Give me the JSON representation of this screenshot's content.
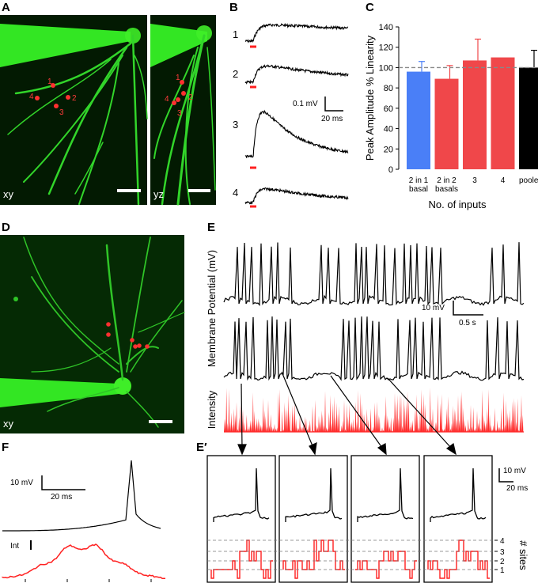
{
  "panels": {
    "A": {
      "label": "A",
      "view1": "xy",
      "view2": "yz",
      "sites_view1": [
        "1",
        "2",
        "3",
        "4"
      ],
      "sites_view2": [
        "1",
        "2",
        "3",
        "4"
      ]
    },
    "B": {
      "label": "B",
      "trace_labels": [
        "1",
        "2",
        "3",
        "4"
      ],
      "scale_mv": "0.1 mV",
      "scale_ms": "20 ms"
    },
    "C": {
      "label": "C"
    },
    "D": {
      "label": "D",
      "view": "xy"
    },
    "E": {
      "label": "E",
      "ylabel": "Membrane Potential (mV)",
      "intensity_label": "Intensity",
      "scale_mv": "10 mV",
      "scale_s": "0.5 s"
    },
    "Eprime": {
      "label": "E′",
      "scale_mv": "10 mV",
      "scale_ms": "20 ms",
      "sites_label": "# sites",
      "site_levels": [
        "4",
        "3",
        "2",
        "1"
      ]
    },
    "F": {
      "label": "F",
      "scale_mv": "10 mV",
      "scale_ms": "20 ms",
      "int_label": "Int"
    }
  },
  "chart_data": {
    "type": "bar",
    "categories": [
      "2 in 1 basal",
      "2 in 2 basals",
      "3",
      "4",
      "pooled"
    ],
    "category_lines": [
      [
        "2 in 1",
        "basal"
      ],
      [
        "2 in 2",
        "basals"
      ],
      [
        "3"
      ],
      [
        "4"
      ],
      [
        "pooled"
      ]
    ],
    "values": [
      96,
      89,
      107,
      110,
      100
    ],
    "errors": [
      10,
      13,
      21,
      0,
      17
    ],
    "colors": [
      "#4a7ff7",
      "#f0474a",
      "#f0474a",
      "#f0474a",
      "#000000"
    ],
    "reference_line": 100,
    "ylabel": "Peak Amplitude % Linearity",
    "xlabel": "No. of inputs",
    "ylim": [
      0,
      140
    ],
    "yticks": [
      0,
      20,
      40,
      60,
      80,
      100,
      120,
      140
    ]
  }
}
